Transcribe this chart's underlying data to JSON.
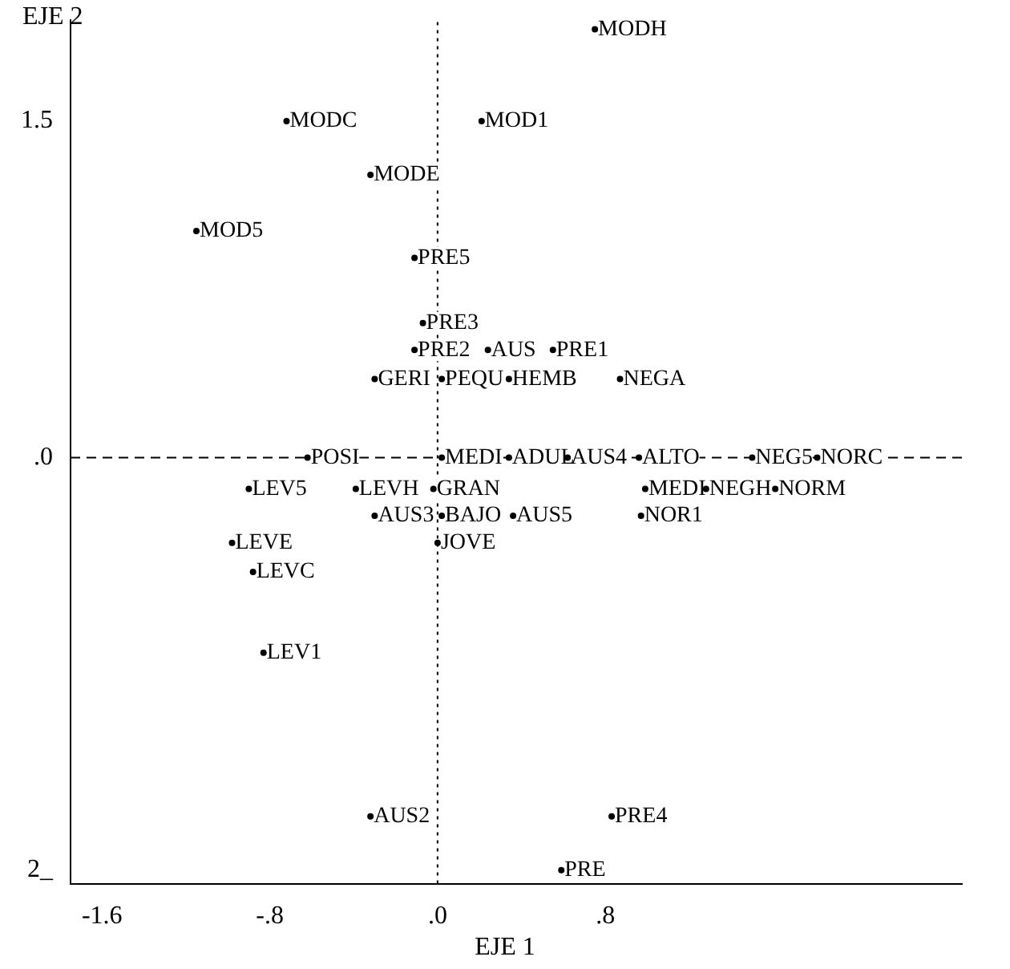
{
  "chart_data": {
    "type": "scatter",
    "xlabel": "EJE 1",
    "ylabel": "EJE 2",
    "marker": "circle",
    "grid": false,
    "legend": false,
    "xlim": [
      -1.75,
      2.5
    ],
    "ylim": [
      -1.9,
      1.95
    ],
    "xticks": [
      {
        "value": -1.6,
        "label": "-1.6"
      },
      {
        "value": -0.8,
        "label": "-.8"
      },
      {
        "value": 0,
        "label": ".0"
      },
      {
        "value": 0.8,
        "label": ".8"
      }
    ],
    "yticks": [
      {
        "value": 1.5,
        "label": "1.5"
      },
      {
        "value": 0,
        "label": ".0"
      },
      {
        "value": -1.84,
        "label": "2_"
      }
    ],
    "ref_lines": [
      {
        "axis": "x",
        "value": 0,
        "line_style": "dotted"
      },
      {
        "axis": "y",
        "value": 0,
        "line_style": "dashed"
      }
    ],
    "series": [
      {
        "color": "#000000",
        "x": [
          0.75,
          -0.72,
          0.21,
          -0.32,
          -1.15,
          -0.11,
          -0.07,
          -0.11,
          0.24,
          0.55,
          -0.3,
          0.02,
          0.34,
          0.87,
          -0.62,
          0.02,
          0.34,
          0.62,
          0.96,
          1.5,
          1.81,
          -0.9,
          -0.39,
          -0.02,
          0.99,
          1.28,
          1.61,
          -0.3,
          0.02,
          0.36,
          0.97,
          -0.98,
          0.0,
          -0.88,
          -0.83,
          -0.32,
          0.83,
          0.59
        ],
        "values": [
          1.91,
          1.5,
          1.5,
          1.26,
          1.01,
          0.89,
          0.6,
          0.48,
          0.48,
          0.48,
          0.35,
          0.35,
          0.35,
          0.35,
          0,
          0,
          0,
          0,
          0,
          0,
          0,
          -0.14,
          -0.14,
          -0.14,
          -0.14,
          -0.14,
          -0.14,
          -0.26,
          -0.26,
          -0.26,
          -0.26,
          -0.38,
          -0.38,
          -0.51,
          -0.87,
          -1.6,
          -1.6,
          -1.84
        ],
        "value_labels": [
          "MODH",
          "MODC",
          "MOD1",
          "MODE",
          "MOD5",
          "PRE5",
          "PRE3",
          "PRE2",
          "AUS",
          "PRE1",
          "GERI",
          "PEQU",
          "HEMB",
          "NEGA",
          "POSI",
          "MEDI",
          "ADUL",
          "AUS4",
          "ALTO",
          "NEG5",
          "NORC",
          "LEV5",
          "LEVH",
          "GRAN",
          "MEDI",
          "NEGH",
          "NORM",
          "AUS3",
          "BAJO",
          "AUS5",
          "NOR1",
          "LEVE",
          "JOVE",
          "LEVC",
          "LEV1",
          "AUS2",
          "PRE4",
          "PRE"
        ]
      }
    ]
  }
}
